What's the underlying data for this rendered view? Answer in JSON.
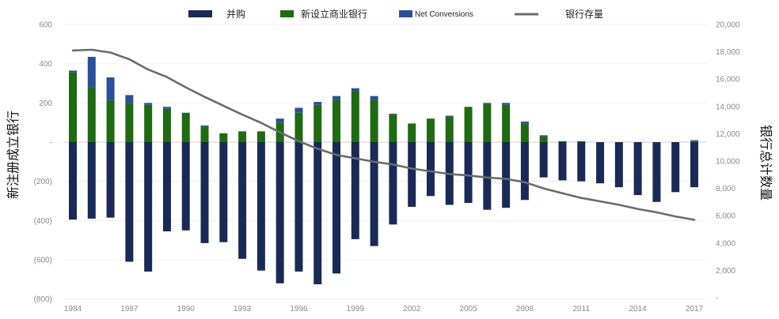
{
  "chart_data": {
    "type": "bar",
    "legend": {
      "placement": "top",
      "items": [
        {
          "label": "并购",
          "kind": "bar",
          "color": "#1a2a57"
        },
        {
          "label": "新设立商业银行",
          "kind": "bar",
          "color": "#1e6b12"
        },
        {
          "label": "Net Conversions",
          "kind": "bar",
          "color": "#2a4f9e"
        },
        {
          "label": "银行存量",
          "kind": "line",
          "color": "#6b6b6b"
        }
      ]
    },
    "ylabel_left": "新注册成立银行",
    "ylabel_right": "银行总计数量",
    "y_left": {
      "range": [
        -800,
        600
      ],
      "ticks": [
        "600",
        "400",
        "200",
        "-",
        "(200)",
        "(400)",
        "(600)",
        "(800)"
      ]
    },
    "y_right": {
      "range": [
        0,
        20000
      ],
      "ticks": [
        "20,000",
        "18,000",
        "16,000",
        "14,000",
        "12,000",
        "10,000",
        "8,000",
        "6,000",
        "4,000",
        "2,000",
        "-"
      ]
    },
    "x_tick_labels": [
      "1984",
      "1987",
      "1990",
      "1993",
      "1996",
      "1999",
      "2002",
      "2005",
      "2008",
      "2011",
      "2014",
      "2017"
    ],
    "years": [
      1984,
      1985,
      1986,
      1987,
      1988,
      1989,
      1990,
      1991,
      1992,
      1993,
      1994,
      1995,
      1996,
      1997,
      1998,
      1999,
      2000,
      2001,
      2002,
      2003,
      2004,
      2005,
      2006,
      2007,
      2008,
      2009,
      2010,
      2011,
      2012,
      2013,
      2014,
      2015,
      2016,
      2017
    ],
    "series": [
      {
        "name": "并购",
        "values": [
          -395,
          -390,
          -385,
          -610,
          -660,
          -455,
          -450,
          -515,
          -510,
          -595,
          -655,
          -720,
          -660,
          -725,
          -670,
          -495,
          -530,
          -420,
          -330,
          -275,
          -320,
          -310,
          -345,
          -335,
          -295,
          -180,
          -195,
          -200,
          -210,
          -230,
          -270,
          -305,
          -255,
          -230
        ]
      },
      {
        "name": "新设立商业银行",
        "values": [
          355,
          280,
          215,
          200,
          190,
          170,
          145,
          80,
          45,
          55,
          55,
          100,
          150,
          190,
          215,
          260,
          215,
          140,
          95,
          120,
          130,
          180,
          195,
          190,
          95,
          30,
          5,
          5,
          0,
          0,
          0,
          0,
          0,
          5
        ]
      },
      {
        "name": "Net Conversions",
        "values": [
          10,
          155,
          115,
          40,
          10,
          10,
          5,
          5,
          0,
          0,
          0,
          20,
          25,
          15,
          20,
          15,
          20,
          5,
          0,
          0,
          5,
          0,
          5,
          10,
          10,
          5,
          0,
          0,
          0,
          0,
          0,
          0,
          0,
          5
        ]
      },
      {
        "name": "银行存量",
        "axis": "right",
        "values": [
          18100,
          18150,
          17950,
          17450,
          16700,
          16150,
          15400,
          14700,
          14050,
          13400,
          12800,
          12100,
          11450,
          10900,
          10450,
          10200,
          9950,
          9750,
          9450,
          9250,
          9050,
          8950,
          8800,
          8700,
          8450,
          8000,
          7650,
          7300,
          7050,
          6800,
          6500,
          6250,
          5950,
          5700
        ]
      }
    ]
  }
}
